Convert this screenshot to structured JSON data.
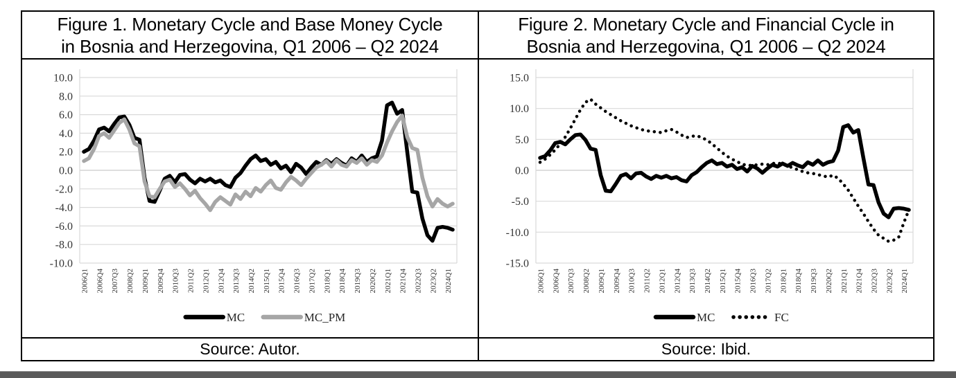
{
  "panels": [
    {
      "title_line1": "Figure 1. Monetary Cycle and Base Money Cycle",
      "title_line2": "in Bosnia and Herzegovina, Q1 2006 – Q2 2024",
      "source": "Source: Autor."
    },
    {
      "title_line1": "Figure 2. Monetary Cycle and Financial Cycle in",
      "title_line2": "Bosnia and Herzegovina, Q1 2006 – Q2 2024",
      "source": "Source: Ibid."
    }
  ],
  "colors": {
    "mc_line": "#000000",
    "mc_pm_line": "#a6a6a6",
    "fc_line": "#000000",
    "gridline": "#d9d9d9",
    "zero_line": "#c9c9c9",
    "tick_text": "#333333",
    "border": "#000000"
  },
  "chart_data": [
    {
      "type": "line",
      "title": "Monetary Cycle and Base Money Cycle in Bosnia and Herzegovina, Q1 2006 - Q2 2024",
      "xlabel": "",
      "ylabel": "",
      "ylim": [
        -10,
        10
      ],
      "yticks": [
        10.0,
        8.0,
        6.0,
        4.0,
        2.0,
        0.0,
        -2.0,
        -4.0,
        -6.0,
        -8.0,
        -10.0
      ],
      "grid": true,
      "legend_position": "bottom",
      "xtick_labels": [
        "2006Q1",
        "2006Q4",
        "2007Q3",
        "2008Q2",
        "2009Q1",
        "2009Q4",
        "2010Q3",
        "2011Q2",
        "2012Q1",
        "2012Q4",
        "2013Q3",
        "2014Q2",
        "2015Q1",
        "2015Q4",
        "2016Q3",
        "2017Q2",
        "2018Q1",
        "2018Q4",
        "2019Q3",
        "2020Q2",
        "2021Q1",
        "2021Q4",
        "2022Q3",
        "2023Q2",
        "2024Q1"
      ],
      "xtick_every": 3,
      "categories": [
        "2006Q1",
        "2006Q2",
        "2006Q3",
        "2006Q4",
        "2007Q1",
        "2007Q2",
        "2007Q3",
        "2007Q4",
        "2008Q1",
        "2008Q2",
        "2008Q3",
        "2008Q4",
        "2009Q1",
        "2009Q2",
        "2009Q3",
        "2009Q4",
        "2010Q1",
        "2010Q2",
        "2010Q3",
        "2010Q4",
        "2011Q1",
        "2011Q2",
        "2011Q3",
        "2011Q4",
        "2012Q1",
        "2012Q2",
        "2012Q3",
        "2012Q4",
        "2013Q1",
        "2013Q2",
        "2013Q3",
        "2013Q4",
        "2014Q1",
        "2014Q2",
        "2014Q3",
        "2014Q4",
        "2015Q1",
        "2015Q2",
        "2015Q3",
        "2015Q4",
        "2016Q1",
        "2016Q2",
        "2016Q3",
        "2016Q4",
        "2017Q1",
        "2017Q2",
        "2017Q3",
        "2017Q4",
        "2018Q1",
        "2018Q2",
        "2018Q3",
        "2018Q4",
        "2019Q1",
        "2019Q2",
        "2019Q3",
        "2019Q4",
        "2020Q1",
        "2020Q2",
        "2020Q3",
        "2020Q4",
        "2021Q1",
        "2021Q2",
        "2021Q3",
        "2021Q4",
        "2022Q1",
        "2022Q2",
        "2022Q3",
        "2022Q4",
        "2023Q1",
        "2023Q2",
        "2023Q3",
        "2023Q4",
        "2024Q1",
        "2024Q2"
      ],
      "series": [
        {
          "name": "MC",
          "color": "#000000",
          "style": "solid",
          "width": 5.5,
          "values": [
            2.0,
            2.3,
            3.2,
            4.4,
            4.6,
            4.2,
            5.0,
            5.7,
            5.8,
            4.9,
            3.5,
            3.3,
            -0.8,
            -3.3,
            -3.4,
            -2.2,
            -0.9,
            -0.6,
            -1.3,
            -0.5,
            -0.4,
            -1.0,
            -1.4,
            -0.9,
            -1.2,
            -0.9,
            -1.3,
            -1.1,
            -1.6,
            -1.8,
            -0.8,
            -0.3,
            0.5,
            1.2,
            1.6,
            1.0,
            1.2,
            0.6,
            0.9,
            0.2,
            0.5,
            -0.2,
            0.7,
            0.3,
            -0.4,
            0.3,
            0.9,
            0.6,
            1.1,
            0.7,
            1.2,
            0.8,
            0.5,
            1.3,
            0.9,
            1.6,
            0.9,
            1.3,
            1.5,
            3.2,
            7.0,
            7.3,
            6.1,
            6.5,
            2.0,
            -2.3,
            -2.4,
            -5.2,
            -7.0,
            -7.6,
            -6.2,
            -6.1,
            -6.2,
            -6.4
          ]
        },
        {
          "name": "MC_PM",
          "color": "#a6a6a6",
          "style": "solid",
          "width": 5.5,
          "values": [
            1.0,
            1.3,
            2.3,
            3.7,
            4.0,
            3.5,
            4.3,
            5.1,
            5.5,
            4.4,
            2.9,
            2.6,
            -1.2,
            -2.8,
            -2.9,
            -2.0,
            -1.2,
            -1.0,
            -1.8,
            -1.4,
            -2.0,
            -2.7,
            -2.2,
            -3.0,
            -3.6,
            -4.3,
            -3.4,
            -2.9,
            -3.3,
            -3.7,
            -2.6,
            -3.1,
            -2.3,
            -2.8,
            -1.9,
            -2.3,
            -1.6,
            -1.1,
            -1.9,
            -2.1,
            -1.3,
            -0.7,
            -1.1,
            -1.6,
            -0.9,
            -0.3,
            0.3,
            0.6,
            1.0,
            0.4,
            1.1,
            0.6,
            0.4,
            1.1,
            0.8,
            1.3,
            0.6,
            1.1,
            0.9,
            1.6,
            3.0,
            4.2,
            5.2,
            5.9,
            3.6,
            2.4,
            2.2,
            -0.8,
            -2.8,
            -3.9,
            -3.1,
            -3.6,
            -3.9,
            -3.6
          ]
        }
      ]
    },
    {
      "type": "line",
      "title": "Monetary Cycle and Financial Cycle in Bosnia and Herzegovina, Q1 2006 - Q2 2024",
      "xlabel": "",
      "ylabel": "",
      "ylim": [
        -15,
        15
      ],
      "yticks": [
        15.0,
        10.0,
        5.0,
        0.0,
        -5.0,
        -10.0,
        -15.0
      ],
      "grid": true,
      "legend_position": "bottom",
      "xtick_labels": [
        "2006Q1",
        "2006Q4",
        "2007Q3",
        "2008Q2",
        "2009Q1",
        "2009Q4",
        "2010Q3",
        "2011Q2",
        "2012Q1",
        "2012Q4",
        "2013Q3",
        "2014Q2",
        "2015Q1",
        "2015Q4",
        "2016Q3",
        "2017Q2",
        "2018Q1",
        "2018Q4",
        "2019Q3",
        "2020Q2",
        "2021Q1",
        "2021Q4",
        "2022Q3",
        "2023Q2",
        "2024Q1"
      ],
      "xtick_every": 3,
      "categories": [
        "2006Q1",
        "2006Q2",
        "2006Q3",
        "2006Q4",
        "2007Q1",
        "2007Q2",
        "2007Q3",
        "2007Q4",
        "2008Q1",
        "2008Q2",
        "2008Q3",
        "2008Q4",
        "2009Q1",
        "2009Q2",
        "2009Q3",
        "2009Q4",
        "2010Q1",
        "2010Q2",
        "2010Q3",
        "2010Q4",
        "2011Q1",
        "2011Q2",
        "2011Q3",
        "2011Q4",
        "2012Q1",
        "2012Q2",
        "2012Q3",
        "2012Q4",
        "2013Q1",
        "2013Q2",
        "2013Q3",
        "2013Q4",
        "2014Q1",
        "2014Q2",
        "2014Q3",
        "2014Q4",
        "2015Q1",
        "2015Q2",
        "2015Q3",
        "2015Q4",
        "2016Q1",
        "2016Q2",
        "2016Q3",
        "2016Q4",
        "2017Q1",
        "2017Q2",
        "2017Q3",
        "2017Q4",
        "2018Q1",
        "2018Q2",
        "2018Q3",
        "2018Q4",
        "2019Q1",
        "2019Q2",
        "2019Q3",
        "2019Q4",
        "2020Q1",
        "2020Q2",
        "2020Q3",
        "2020Q4",
        "2021Q1",
        "2021Q2",
        "2021Q3",
        "2021Q4",
        "2022Q1",
        "2022Q2",
        "2022Q3",
        "2022Q4",
        "2023Q1",
        "2023Q2",
        "2023Q3",
        "2023Q4",
        "2024Q1",
        "2024Q2"
      ],
      "series": [
        {
          "name": "MC",
          "color": "#000000",
          "style": "solid",
          "width": 5.5,
          "values": [
            2.0,
            2.3,
            3.2,
            4.4,
            4.6,
            4.2,
            5.0,
            5.7,
            5.8,
            4.9,
            3.5,
            3.3,
            -0.8,
            -3.3,
            -3.4,
            -2.2,
            -0.9,
            -0.6,
            -1.3,
            -0.5,
            -0.4,
            -1.0,
            -1.4,
            -0.9,
            -1.2,
            -0.9,
            -1.3,
            -1.1,
            -1.6,
            -1.8,
            -0.8,
            -0.3,
            0.5,
            1.2,
            1.6,
            1.0,
            1.2,
            0.6,
            0.9,
            0.2,
            0.5,
            -0.2,
            0.7,
            0.3,
            -0.4,
            0.3,
            0.9,
            0.6,
            1.1,
            0.7,
            1.2,
            0.8,
            0.5,
            1.3,
            0.9,
            1.6,
            0.9,
            1.3,
            1.5,
            3.2,
            7.0,
            7.3,
            6.1,
            6.5,
            2.0,
            -2.3,
            -2.4,
            -5.2,
            -7.0,
            -7.6,
            -6.2,
            -6.1,
            -6.2,
            -6.4
          ]
        },
        {
          "name": "FC",
          "color": "#000000",
          "style": "dotted",
          "width": 4.5,
          "values": [
            1.3,
            1.8,
            2.5,
            3.3,
            4.3,
            5.4,
            6.8,
            8.3,
            9.8,
            11.0,
            11.5,
            10.7,
            10.1,
            9.5,
            9.0,
            8.5,
            8.0,
            7.6,
            7.2,
            6.9,
            6.6,
            6.4,
            6.3,
            6.2,
            6.1,
            6.4,
            6.6,
            6.2,
            5.7,
            5.3,
            5.5,
            5.6,
            5.3,
            4.9,
            4.3,
            3.6,
            2.9,
            2.3,
            1.8,
            1.4,
            1.0,
            0.8,
            0.8,
            0.9,
            1.0,
            0.9,
            1.1,
            1.2,
            1.0,
            0.7,
            0.4,
            0.1,
            -0.2,
            -0.4,
            -0.5,
            -0.7,
            -0.9,
            -1.1,
            -0.8,
            -1.3,
            -2.2,
            -3.2,
            -4.5,
            -5.8,
            -7.0,
            -8.3,
            -9.5,
            -10.5,
            -11.0,
            -11.5,
            -11.3,
            -10.8,
            -8.5,
            -6.4
          ]
        }
      ]
    }
  ]
}
